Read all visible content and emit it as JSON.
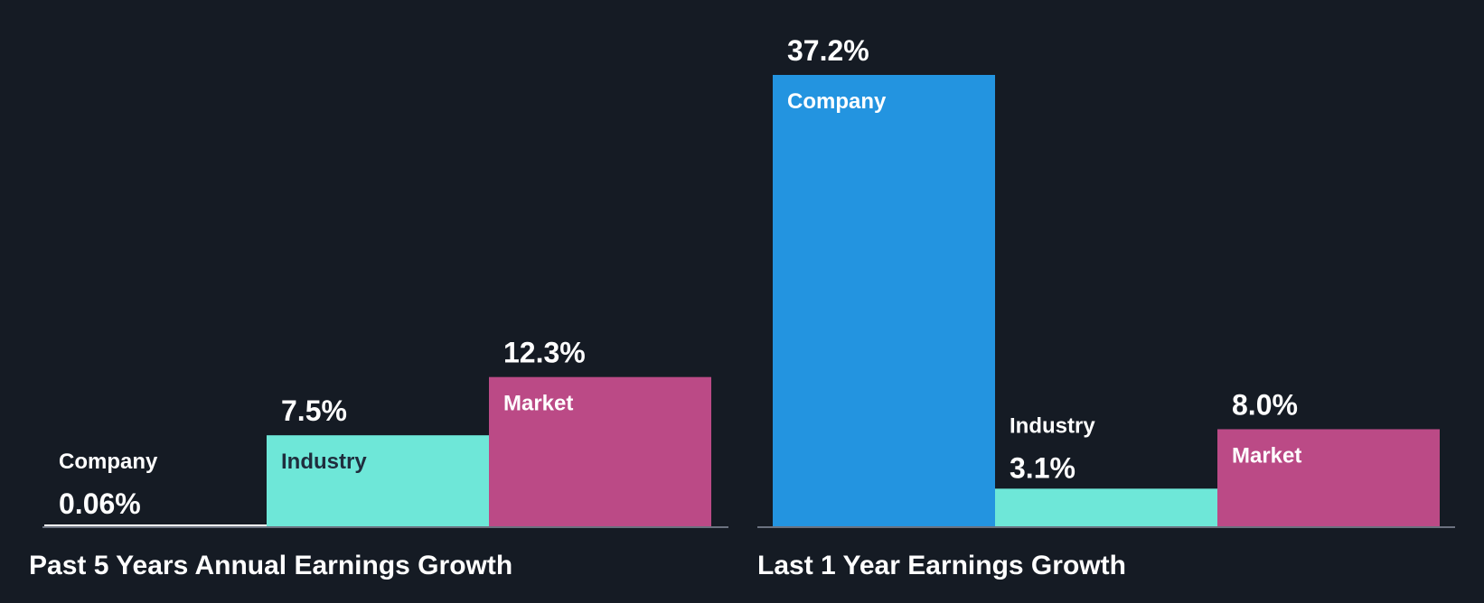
{
  "theme": {
    "background": "#151b24",
    "baseline": "#6b7280",
    "text": "#ffffff",
    "dark_text": "#1f2d3d"
  },
  "chart_data": [
    {
      "type": "bar",
      "title": "Past 5 Years Annual Earnings Growth",
      "categories": [
        "Company",
        "Industry",
        "Market"
      ],
      "values": [
        0.06,
        7.5,
        12.3
      ],
      "value_labels": [
        "0.06%",
        "7.5%",
        "12.3%"
      ],
      "colors": [
        "#ffffff",
        "#6ee7d8",
        "#bb4a86"
      ],
      "label_colors": [
        "#ffffff",
        "#1f2d3d",
        "#ffffff"
      ],
      "ylim": [
        0,
        37.2
      ],
      "unit": "%"
    },
    {
      "type": "bar",
      "title": "Last 1 Year Earnings Growth",
      "categories": [
        "Company",
        "Industry",
        "Market"
      ],
      "values": [
        37.2,
        3.1,
        8.0
      ],
      "value_labels": [
        "37.2%",
        "3.1%",
        "8.0%"
      ],
      "colors": [
        "#2394e0",
        "#6ee7d8",
        "#bb4a86"
      ],
      "label_colors": [
        "#ffffff",
        "#ffffff",
        "#ffffff"
      ],
      "ylim": [
        0,
        37.2
      ],
      "unit": "%"
    }
  ]
}
